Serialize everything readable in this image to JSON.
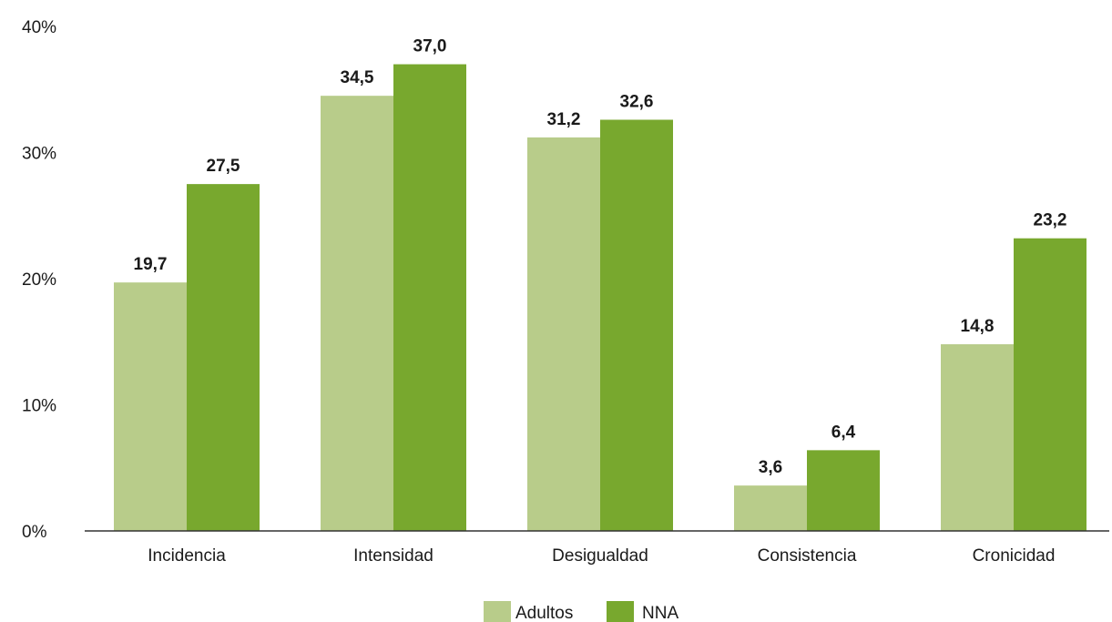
{
  "chart_data": {
    "type": "bar",
    "categories": [
      "Incidencia",
      "Intensidad",
      "Desigualdad",
      "Consistencia",
      "Cronicidad"
    ],
    "series": [
      {
        "name": "Adultos",
        "color": "#b8cc8a",
        "values": [
          19.7,
          34.5,
          31.2,
          3.6,
          14.8
        ],
        "labels": [
          "19,7",
          "34,5",
          "31,2",
          "3,6",
          "14,8"
        ]
      },
      {
        "name": "NNA",
        "color": "#78a82e",
        "values": [
          27.5,
          37.0,
          32.6,
          6.4,
          23.2
        ],
        "labels": [
          "27,5",
          "37,0",
          "32,6",
          "6,4",
          "23,2"
        ]
      }
    ],
    "ylim": [
      0,
      40
    ],
    "yticks": [
      0,
      10,
      20,
      30,
      40
    ],
    "ytick_labels": [
      "0%",
      "10%",
      "20%",
      "30%",
      "40%"
    ],
    "grid": false,
    "legend_position": "bottom-center"
  }
}
